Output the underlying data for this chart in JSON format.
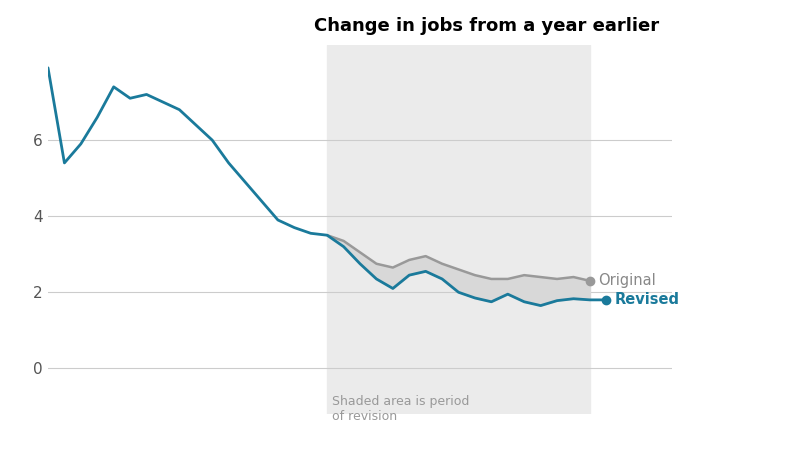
{
  "title": "Change in jobs from a year earlier",
  "yticks": [
    0,
    2,
    4,
    6
  ],
  "ylim": [
    -1.2,
    8.5
  ],
  "xlim": [
    0,
    38
  ],
  "shade_start": 17,
  "shade_end": 33,
  "line_color": "#1a7a9b",
  "original_color": "#999999",
  "fill_color": "#d8d8d8",
  "shade_color": "#ebebeb",
  "annotation_text": "Shaded area is period\nof revision",
  "revised_x_data": [
    0,
    1,
    2,
    3,
    4,
    5,
    6,
    7,
    8,
    9,
    10,
    11,
    12,
    13,
    14,
    15,
    16,
    17,
    18,
    19,
    20,
    21,
    22,
    23,
    24,
    25,
    26,
    27,
    28,
    29,
    30,
    31,
    32,
    33,
    34
  ],
  "revised_y_data": [
    7.9,
    5.4,
    5.9,
    6.6,
    7.4,
    7.1,
    7.2,
    7.0,
    6.8,
    6.4,
    6.0,
    5.4,
    4.9,
    4.4,
    3.9,
    3.7,
    3.55,
    3.5,
    3.2,
    2.75,
    2.35,
    2.1,
    2.45,
    2.55,
    2.35,
    2.0,
    1.85,
    1.75,
    1.95,
    1.75,
    1.65,
    1.78,
    1.83,
    1.8,
    1.8
  ],
  "original_x_data": [
    17,
    18,
    19,
    20,
    21,
    22,
    23,
    24,
    25,
    26,
    27,
    28,
    29,
    30,
    31,
    32,
    33
  ],
  "original_y_data": [
    3.5,
    3.35,
    3.05,
    2.75,
    2.65,
    2.85,
    2.95,
    2.75,
    2.6,
    2.45,
    2.35,
    2.35,
    2.45,
    2.4,
    2.35,
    2.4,
    2.3
  ],
  "legend_original_label": "Original",
  "legend_revised_label": "Revised"
}
